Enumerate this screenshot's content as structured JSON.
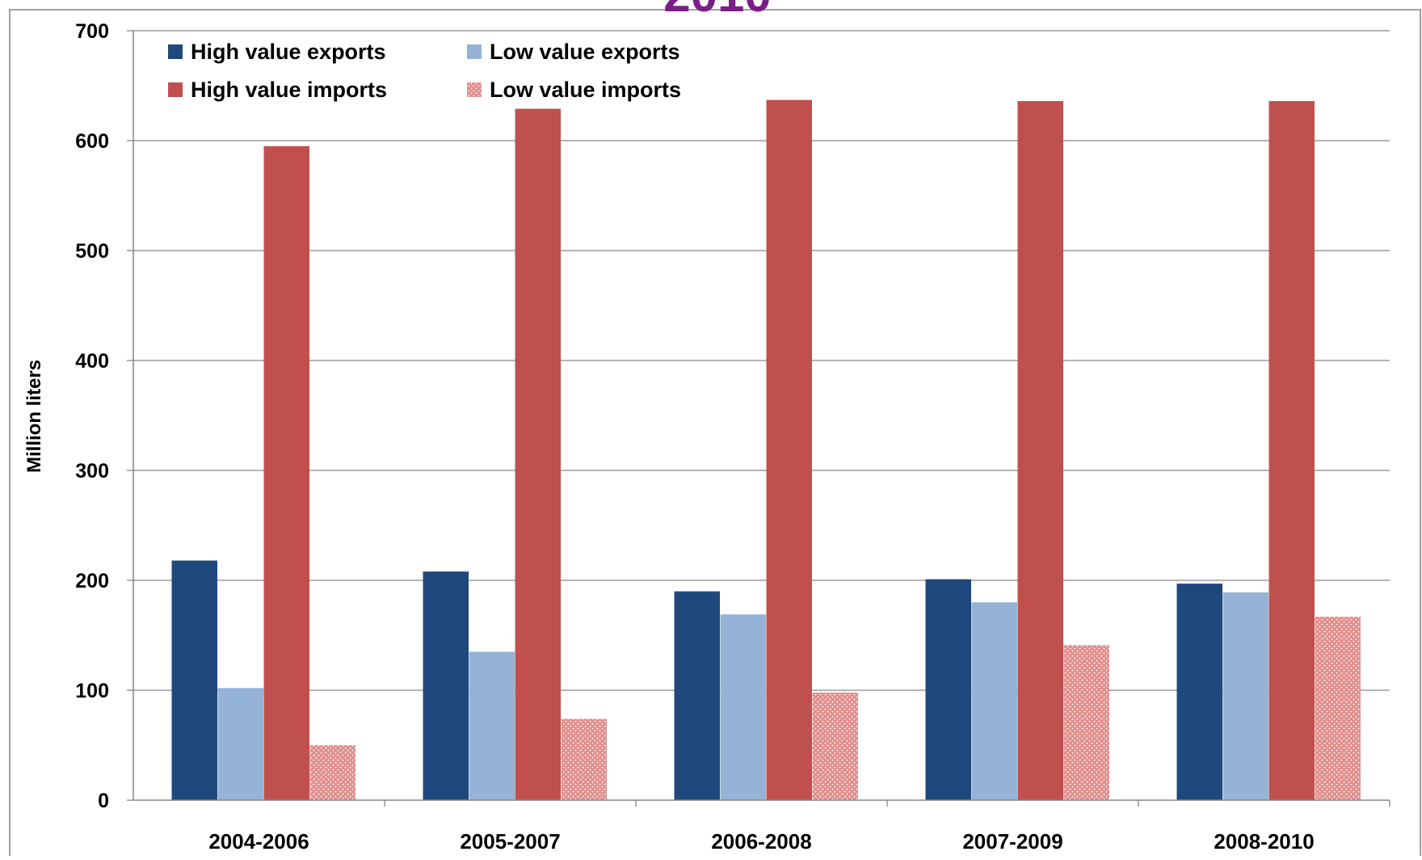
{
  "header": {
    "title_fragment": "2010"
  },
  "chart_data": {
    "type": "bar",
    "title": "2010",
    "xlabel": "",
    "ylabel": "Million liters",
    "ylim": [
      0,
      700
    ],
    "yticks": [
      0,
      100,
      200,
      300,
      400,
      500,
      600,
      700
    ],
    "grid": true,
    "legend_position": "top-left",
    "categories": [
      "2004-2006",
      "2005-2007",
      "2006-2008",
      "2007-2009",
      "2008-2010"
    ],
    "series": [
      {
        "name": "High value exports",
        "values": [
          218,
          208,
          190,
          201,
          197
        ],
        "color": "#1f497d",
        "pattern": "solid"
      },
      {
        "name": "Low value exports",
        "values": [
          102,
          135,
          169,
          180,
          189
        ],
        "color": "#95b3d7",
        "pattern": "solid"
      },
      {
        "name": "High value imports",
        "values": [
          595,
          629,
          637,
          636,
          636
        ],
        "color": "#c0504d",
        "pattern": "solid"
      },
      {
        "name": "Low value imports",
        "values": [
          50,
          74,
          98,
          141,
          167
        ],
        "color": "#e6a1a0",
        "pattern": "dotted"
      }
    ]
  }
}
